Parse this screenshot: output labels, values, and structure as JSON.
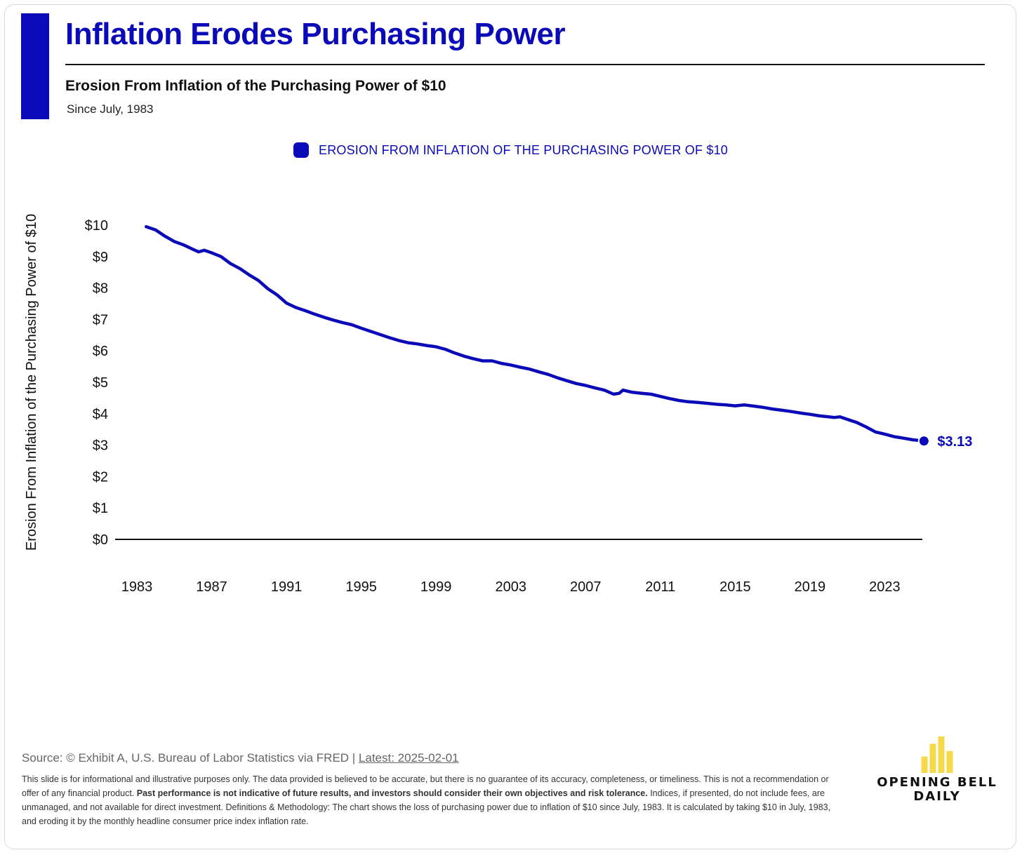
{
  "header": {
    "title": "Inflation Erodes Purchasing Power",
    "subtitle": "Erosion From Inflation of the Purchasing Power of $10",
    "since": "Since July, 1983"
  },
  "legend": {
    "label": "EROSION FROM INFLATION OF THE PURCHASING POWER OF $10"
  },
  "colors": {
    "accent": "#0a0ab8",
    "axis": "#111111",
    "text": "#111111"
  },
  "chart_data": {
    "type": "line",
    "ylabel": "Erosion From Inflation of the Purchasing Power of $10",
    "xlabel": "",
    "ylim": [
      0,
      10
    ],
    "xlim": [
      1983,
      2025.5
    ],
    "y_ticks": [
      {
        "value": 10,
        "label": "$10"
      },
      {
        "value": 9,
        "label": "$9"
      },
      {
        "value": 8,
        "label": "$8"
      },
      {
        "value": 7,
        "label": "$7"
      },
      {
        "value": 6,
        "label": "$6"
      },
      {
        "value": 5,
        "label": "$5"
      },
      {
        "value": 4,
        "label": "$4"
      },
      {
        "value": 3,
        "label": "$3"
      },
      {
        "value": 2,
        "label": "$2"
      },
      {
        "value": 1,
        "label": "$1"
      },
      {
        "value": 0,
        "label": "$0"
      }
    ],
    "x_ticks": [
      {
        "value": 1983,
        "label": "1983"
      },
      {
        "value": 1987,
        "label": "1987"
      },
      {
        "value": 1991,
        "label": "1991"
      },
      {
        "value": 1995,
        "label": "1995"
      },
      {
        "value": 1999,
        "label": "1999"
      },
      {
        "value": 2003,
        "label": "2003"
      },
      {
        "value": 2007,
        "label": "2007"
      },
      {
        "value": 2011,
        "label": "2011"
      },
      {
        "value": 2015,
        "label": "2015"
      },
      {
        "value": 2019,
        "label": "2019"
      },
      {
        "value": 2023,
        "label": "2023"
      }
    ],
    "grid": false,
    "legend_position": "top-center",
    "series": [
      {
        "name": "EROSION FROM INFLATION OF THE PURCHASING POWER OF $10",
        "color": "#0a0ab8",
        "x": [
          1983.5,
          1984.0,
          1984.5,
          1985.0,
          1985.5,
          1986.0,
          1986.3,
          1986.6,
          1987.0,
          1987.5,
          1988.0,
          1988.5,
          1989.0,
          1989.5,
          1990.0,
          1990.5,
          1991.0,
          1991.5,
          1992.0,
          1992.5,
          1993.0,
          1993.5,
          1994.0,
          1994.5,
          1995.0,
          1995.5,
          1996.0,
          1996.5,
          1997.0,
          1997.5,
          1998.0,
          1998.5,
          1999.0,
          1999.5,
          2000.0,
          2000.5,
          2001.0,
          2001.5,
          2002.0,
          2002.5,
          2003.0,
          2003.5,
          2004.0,
          2004.5,
          2005.0,
          2005.5,
          2006.0,
          2006.5,
          2007.0,
          2007.5,
          2008.0,
          2008.5,
          2008.8,
          2009.0,
          2009.5,
          2010.0,
          2010.5,
          2011.0,
          2011.5,
          2012.0,
          2012.5,
          2013.0,
          2013.5,
          2014.0,
          2014.5,
          2015.0,
          2015.5,
          2016.0,
          2016.5,
          2017.0,
          2017.5,
          2018.0,
          2018.5,
          2019.0,
          2019.5,
          2020.0,
          2020.3,
          2020.6,
          2021.0,
          2021.5,
          2022.0,
          2022.5,
          2023.0,
          2023.5,
          2024.0,
          2024.5,
          2025.1
        ],
        "values": [
          9.95,
          9.85,
          9.65,
          9.48,
          9.37,
          9.23,
          9.15,
          9.2,
          9.12,
          9.0,
          8.78,
          8.62,
          8.42,
          8.24,
          7.98,
          7.78,
          7.52,
          7.38,
          7.28,
          7.17,
          7.07,
          6.98,
          6.9,
          6.83,
          6.72,
          6.62,
          6.52,
          6.42,
          6.33,
          6.26,
          6.22,
          6.17,
          6.13,
          6.05,
          5.93,
          5.83,
          5.75,
          5.68,
          5.68,
          5.6,
          5.55,
          5.48,
          5.42,
          5.33,
          5.25,
          5.14,
          5.05,
          4.96,
          4.9,
          4.82,
          4.75,
          4.62,
          4.65,
          4.75,
          4.68,
          4.65,
          4.62,
          4.55,
          4.48,
          4.42,
          4.38,
          4.36,
          4.33,
          4.3,
          4.28,
          4.25,
          4.28,
          4.24,
          4.2,
          4.15,
          4.11,
          4.07,
          4.02,
          3.98,
          3.93,
          3.9,
          3.88,
          3.9,
          3.82,
          3.72,
          3.58,
          3.42,
          3.35,
          3.27,
          3.22,
          3.17,
          3.13
        ]
      }
    ],
    "annotations": [
      {
        "x": 2025.1,
        "y": 3.13,
        "text": "$3.13"
      }
    ]
  },
  "footer": {
    "source_prefix": "Source: © Exhibit A, U.S. Bureau of Labor Statistics via FRED | ",
    "source_link": "Latest: 2025-02-01",
    "disclaimer_1": "This slide is for informational and illustrative purposes only. The data provided is believed to be accurate, but there is no guarantee of its accuracy, completeness, or timeliness. This is not a recommendation or offer of any financial product. ",
    "disclaimer_bold": "Past performance is not indicative of future results, and investors should consider their own objectives and risk tolerance.",
    "disclaimer_2": " Indices, if presented, do not include fees, are unmanaged, and not available for direct investment. Definitions & Methodology: The chart shows the loss of purchasing power due to inflation of $10 since July, 1983. It is calculated by taking $10 in July, 1983, and eroding it by the monthly headline consumer price index inflation rate.",
    "logo_line1": "OPENING BELL",
    "logo_line2": "DAILY",
    "logo_bars": [
      0.45,
      0.8,
      1.0,
      0.6
    ],
    "logo_color": "#f5d94a"
  }
}
